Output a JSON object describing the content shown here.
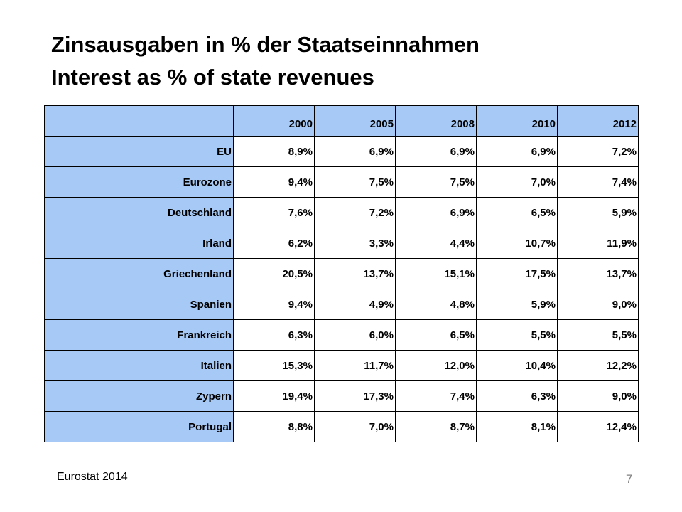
{
  "title": {
    "line1": "Zinsausgaben in % der Staatseinnahmen",
    "line2": "Interest as % of state revenues"
  },
  "table": {
    "years": [
      "2000",
      "2005",
      "2008",
      "2010",
      "2012"
    ],
    "rows": [
      {
        "label": "EU",
        "values": [
          "8,9%",
          "6,9%",
          "6,9%",
          "6,9%",
          "7,2%"
        ]
      },
      {
        "label": "Eurozone",
        "values": [
          "9,4%",
          "7,5%",
          "7,5%",
          "7,0%",
          "7,4%"
        ]
      },
      {
        "label": "Deutschland",
        "values": [
          "7,6%",
          "7,2%",
          "6,9%",
          "6,5%",
          "5,9%"
        ]
      },
      {
        "label": "Irland",
        "values": [
          "6,2%",
          "3,3%",
          "4,4%",
          "10,7%",
          "11,9%"
        ]
      },
      {
        "label": "Griechenland",
        "values": [
          "20,5%",
          "13,7%",
          "15,1%",
          "17,5%",
          "13,7%"
        ]
      },
      {
        "label": "Spanien",
        "values": [
          "9,4%",
          "4,9%",
          "4,8%",
          "5,9%",
          "9,0%"
        ]
      },
      {
        "label": "Frankreich",
        "values": [
          "6,3%",
          "6,0%",
          "6,5%",
          "5,5%",
          "5,5%"
        ]
      },
      {
        "label": "Italien",
        "values": [
          "15,3%",
          "11,7%",
          "12,0%",
          "10,4%",
          "12,2%"
        ]
      },
      {
        "label": "Zypern",
        "values": [
          "19,4%",
          "17,3%",
          "7,4%",
          "6,3%",
          "9,0%"
        ]
      },
      {
        "label": "Portugal",
        "values": [
          "8,8%",
          "7,0%",
          "8,7%",
          "8,1%",
          "12,4%"
        ]
      }
    ]
  },
  "footer": {
    "source": "Eurostat 2014",
    "page_number": "7"
  },
  "colors": {
    "header_fill": "#a6c9f5",
    "border": "#000000",
    "page_number": "#808080"
  }
}
